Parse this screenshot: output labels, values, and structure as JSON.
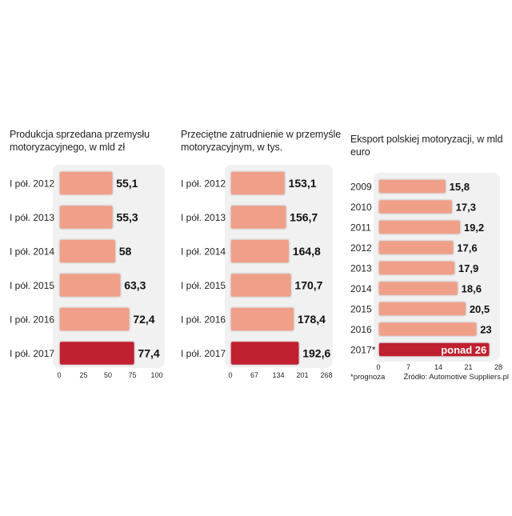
{
  "chart_data": [
    {
      "type": "bar",
      "orientation": "horizontal",
      "title": "Produkcja sprzedana przemysłu motoryzacyjnego, w mld zł",
      "title_lines": [
        "Produkcja sprzedana przemysłu",
        "motoryzacyjnego, w mld zł"
      ],
      "categories": [
        "I pół. 2012",
        "I pół. 2013",
        "I pół. 2014",
        "I pół. 2015",
        "I pół. 2016",
        "I pół. 2017"
      ],
      "values": [
        55.1,
        55.3,
        58,
        63.3,
        72.4,
        77.4
      ],
      "value_labels": [
        "55,1",
        "55,3",
        "58",
        "63,3",
        "72,4",
        "77,4"
      ],
      "xlim": [
        0,
        100
      ],
      "ticks": [
        0,
        25,
        50,
        75,
        100
      ],
      "tick_labels": [
        "0",
        "25",
        "50",
        "75",
        "100"
      ],
      "highlight_index": 5
    },
    {
      "type": "bar",
      "orientation": "horizontal",
      "title": "Przeciętne zatrudnienie w przemyśle motoryzacyjnym, w tys.",
      "title_lines": [
        "Przeciętne zatrudnienie w przemyśle",
        "motoryzacyjnym, w tys."
      ],
      "categories": [
        "I pół. 2012",
        "I pół. 2013",
        "I pół. 2014",
        "I pół. 2015",
        "I pół. 2016",
        "I pół. 2017"
      ],
      "values": [
        153.1,
        156.7,
        164.8,
        170.7,
        178.4,
        192.6
      ],
      "value_labels": [
        "153,1",
        "156,7",
        "164,8",
        "170,7",
        "178,4",
        "192,6"
      ],
      "xlim": [
        0,
        268
      ],
      "ticks": [
        0,
        67,
        134,
        201,
        268
      ],
      "tick_labels": [
        "0",
        "67",
        "134",
        "201",
        "268"
      ],
      "highlight_index": 5
    },
    {
      "type": "bar",
      "orientation": "horizontal",
      "title": "Eksport polskiej motoryzacji, w mld euro",
      "title_lines": [
        "Eksport polskiej motoryzacji, w mld",
        "euro"
      ],
      "categories": [
        "2009",
        "2010",
        "2011",
        "2012",
        "2013",
        "2014",
        "2015",
        "2016",
        "2017*"
      ],
      "values": [
        15.8,
        17.3,
        19.2,
        17.6,
        17.9,
        18.6,
        20.5,
        23,
        26
      ],
      "value_labels": [
        "15,8",
        "17,3",
        "19,2",
        "17,6",
        "17,9",
        "18,6",
        "20,5",
        "23",
        "ponad 26"
      ],
      "xlim": [
        0,
        28
      ],
      "ticks": [
        0,
        7,
        14,
        21,
        28
      ],
      "tick_labels": [
        "0",
        "7",
        "14",
        "21",
        "28"
      ],
      "highlight_index": 8,
      "footnote": "*prognoza",
      "source": "Źródło: Automotive Suppliers.pl"
    }
  ],
  "colors": {
    "bar": "#f0a089",
    "bar_highlight": "#c0202f",
    "bar_outline": "#dcdcdc",
    "panel": "#f1f1f1",
    "text": "#231f20"
  }
}
